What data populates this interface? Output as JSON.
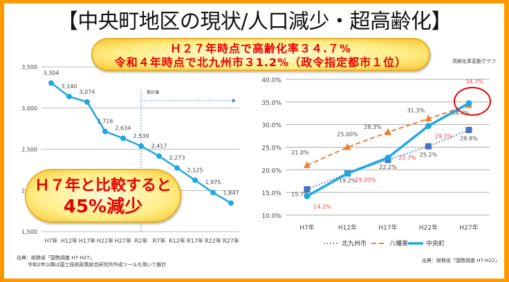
{
  "title": "【中央町地区の現状/人口減少・超高齢化】",
  "callout_top": {
    "line1": "Ｈ２７年時点で高齢化率３４.７%",
    "line2": "令和４年時点で北九州市３1.2%（政令指定都市１位）"
  },
  "callout_left": {
    "line1": "Ｈ７年と比較すると",
    "line2": "45%減少"
  },
  "colors": {
    "frame": "#FF9900",
    "callout_text": "#E60000",
    "population_line": "#1EA7E1",
    "kitakyushu": "#4472C4",
    "yahatahigashi": "#ED7D31",
    "chuomachi": "#1EA7E1",
    "highlight": "#E60000"
  },
  "chart_data": [
    {
      "type": "line",
      "title": "",
      "ylim": [
        1500,
        3500
      ],
      "yticks": [
        "1,500",
        "2,000",
        "2,500",
        "3,000",
        "3,500"
      ],
      "ytick_values": [
        1500,
        2000,
        2500,
        3000,
        3500
      ],
      "categories": [
        "H7年",
        "H12年",
        "H17年",
        "H22年",
        "H27年",
        "R2年",
        "R7年",
        "R12年",
        "R17年",
        "R22年",
        "R27年"
      ],
      "values": [
        3304,
        3140,
        3074,
        2716,
        2634,
        2539,
        2417,
        2273,
        2125,
        1975,
        1847
      ],
      "labels": [
        "3,304",
        "3,140",
        "3,074",
        "2,716",
        "2,634",
        "2,539",
        "2,417",
        "2,273",
        "2,125",
        "1,975",
        "1,847"
      ],
      "projection_start": "R2年",
      "projection_label": "推計値",
      "grid": true,
      "source_line1": "出典：総務省「国勢調査 H7-H27」",
      "source_line2": "令和2年以降は国土技術政策総合研究所作成ツールを用いて推計"
    },
    {
      "type": "line",
      "title": "高齢化率変動グラフ",
      "ylim": [
        10,
        40
      ],
      "yticks": [
        "10.0%",
        "15.0%",
        "20.0%",
        "25.0%",
        "30.0%",
        "35.0%",
        "40.0%"
      ],
      "ytick_values": [
        10,
        15,
        20,
        25,
        30,
        35,
        40
      ],
      "categories": [
        "H7年",
        "H12年",
        "H17年",
        "H22年",
        "H27年"
      ],
      "legend": "bottom",
      "grid": true,
      "series": [
        {
          "name": "北九州市",
          "values": [
            15.7,
            19.2,
            22.2,
            25.2,
            28.8
          ],
          "labels": [
            "15.7%",
            "19.2%",
            "22.2%",
            "25.2%",
            "28.8%"
          ],
          "style": "dotted",
          "marker": "square"
        },
        {
          "name": "八幡東",
          "values": [
            21.0,
            25.0,
            28.3,
            31.3,
            34.3
          ],
          "labels": [
            "21.0%",
            "25.00%",
            "28.3%",
            "31.3%",
            "34.3%"
          ],
          "style": "dashed",
          "marker": "triangle"
        },
        {
          "name": "中央町",
          "values": [
            14.2,
            19.2,
            22.7,
            29.7,
            34.7
          ],
          "labels": [
            "14.2%",
            "19.20%",
            "22.7%",
            "29.7%",
            "34.7%"
          ],
          "style": "solid",
          "marker": "circle"
        }
      ],
      "source": "出典：総務省「国勢調査 H7-H22」"
    }
  ]
}
